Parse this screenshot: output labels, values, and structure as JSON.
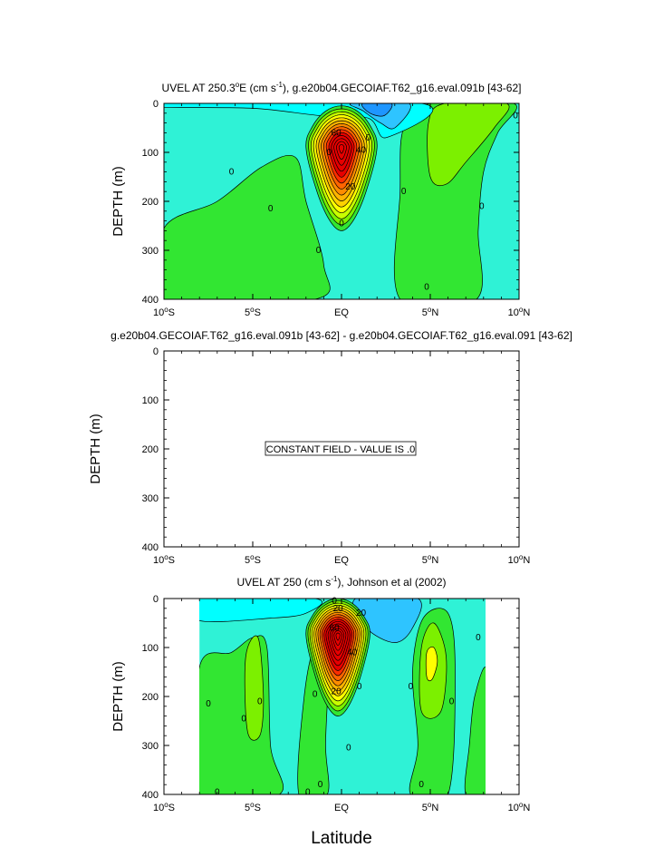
{
  "colors": {
    "levels": [
      "#1e96ff",
      "#2ec4ff",
      "#00ffff",
      "#2ff2d6",
      "#38e890",
      "#32e632",
      "#7cf000",
      "#c8ff00",
      "#ffff00",
      "#ffd200",
      "#ffb400",
      "#ff8c00",
      "#ff6400",
      "#ff2d00",
      "#e60000"
    ]
  },
  "xlabel": "Latitude",
  "chart_data": [
    {
      "type": "heatmap",
      "title_main": "UVEL AT 250.3",
      "title_deg": "o",
      "title_unit_a": "E (cm s",
      "title_sup": "-1",
      "title_rest": "), g.e20b04.GECOIAF.T62_g16.eval.091b [43-62]",
      "ylabel": "DEPTH (m)",
      "ylim": [
        0,
        400
      ],
      "xlim": [
        -10,
        10
      ],
      "y_ticks": [
        "0",
        "100",
        "200",
        "300",
        "400"
      ],
      "x_ticks": [
        {
          "num": "10",
          "sup": "o",
          "hem": "S"
        },
        {
          "num": "5",
          "sup": "o",
          "hem": "S"
        },
        {
          "num": "EQ",
          "sup": "",
          "hem": ""
        },
        {
          "num": "5",
          "sup": "o",
          "hem": "N"
        },
        {
          "num": "10",
          "sup": "o",
          "hem": "N"
        }
      ],
      "core": {
        "lat": 0.0,
        "depth": 90,
        "max": 70
      },
      "contour_labels": [
        {
          "text": "60",
          "lat": -0.3,
          "depth": 60
        },
        {
          "text": "40",
          "lat": 1.1,
          "depth": 95
        },
        {
          "text": "20",
          "lat": 0.5,
          "depth": 170
        },
        {
          "text": "0",
          "lat": -6.2,
          "depth": 140
        },
        {
          "text": "0",
          "lat": -4.0,
          "depth": 215
        },
        {
          "text": "0",
          "lat": -0.7,
          "depth": 100
        },
        {
          "text": "0",
          "lat": -1.3,
          "depth": 300
        },
        {
          "text": "0",
          "lat": 0.0,
          "depth": 245
        },
        {
          "text": "0",
          "lat": 1.5,
          "depth": 70
        },
        {
          "text": "0",
          "lat": 3.5,
          "depth": 180
        },
        {
          "text": "0",
          "lat": 4.8,
          "depth": 375
        },
        {
          "text": "0",
          "lat": 7.9,
          "depth": 210
        },
        {
          "text": "0",
          "lat": 9.8,
          "depth": 25
        }
      ]
    },
    {
      "type": "heatmap",
      "title": "g.e20b04.GECOIAF.T62_g16.eval.091b [43-62] - g.e20b04.GECOIAF.T62_g16.eval.091 [43-62]",
      "ylabel": "DEPTH (m)",
      "ylim": [
        0,
        400
      ],
      "xlim": [
        -10,
        10
      ],
      "y_ticks": [
        "0",
        "100",
        "200",
        "300",
        "400"
      ],
      "x_ticks": [
        {
          "num": "10",
          "sup": "o",
          "hem": "S"
        },
        {
          "num": "5",
          "sup": "o",
          "hem": "S"
        },
        {
          "num": "EQ",
          "sup": "",
          "hem": ""
        },
        {
          "num": "5",
          "sup": "o",
          "hem": "N"
        },
        {
          "num": "10",
          "sup": "o",
          "hem": "N"
        }
      ],
      "constant_field": true,
      "constant_value": 0,
      "message": "CONSTANT FIELD - VALUE IS .0"
    },
    {
      "type": "heatmap",
      "title_main": "UVEL AT 250 (cm s",
      "title_sup": "-1",
      "title_rest": "), Johnson et al (2002)",
      "ylabel": "DEPTH (m)",
      "ylim": [
        0,
        400
      ],
      "xlim": [
        -10,
        10
      ],
      "data_lat_range": [
        -8,
        8.2
      ],
      "y_ticks": [
        "0",
        "100",
        "200",
        "300",
        "400"
      ],
      "x_ticks": [
        {
          "num": "10",
          "sup": "o",
          "hem": "S"
        },
        {
          "num": "5",
          "sup": "o",
          "hem": "S"
        },
        {
          "num": "EQ",
          "sup": "",
          "hem": ""
        },
        {
          "num": "5",
          "sup": "o",
          "hem": "N"
        },
        {
          "num": "10",
          "sup": "o",
          "hem": "N"
        }
      ],
      "core": {
        "lat": -0.2,
        "depth": 75,
        "max": 80
      },
      "contour_labels": [
        {
          "text": "60",
          "lat": -0.4,
          "depth": 60
        },
        {
          "text": "40",
          "lat": 0.6,
          "depth": 110
        },
        {
          "text": "20",
          "lat": -0.3,
          "depth": 190
        },
        {
          "text": "20",
          "lat": 1.1,
          "depth": 30
        },
        {
          "text": "20",
          "lat": -0.2,
          "depth": 20
        },
        {
          "text": "0",
          "lat": -0.4,
          "depth": 5
        },
        {
          "text": "0",
          "lat": -7.5,
          "depth": 215
        },
        {
          "text": "0",
          "lat": -5.5,
          "depth": 245
        },
        {
          "text": "0",
          "lat": -4.6,
          "depth": 210
        },
        {
          "text": "0",
          "lat": -1.5,
          "depth": 195
        },
        {
          "text": "0",
          "lat": -1.9,
          "depth": 395
        },
        {
          "text": "0",
          "lat": -1.2,
          "depth": 380
        },
        {
          "text": "0",
          "lat": 0.4,
          "depth": 305
        },
        {
          "text": "0",
          "lat": 1.0,
          "depth": 180
        },
        {
          "text": "0",
          "lat": 3.9,
          "depth": 180
        },
        {
          "text": "0",
          "lat": 4.5,
          "depth": 380
        },
        {
          "text": "0",
          "lat": 6.2,
          "depth": 210
        },
        {
          "text": "0",
          "lat": 7.7,
          "depth": 80
        },
        {
          "text": "0",
          "lat": -7.0,
          "depth": 395
        }
      ]
    }
  ]
}
